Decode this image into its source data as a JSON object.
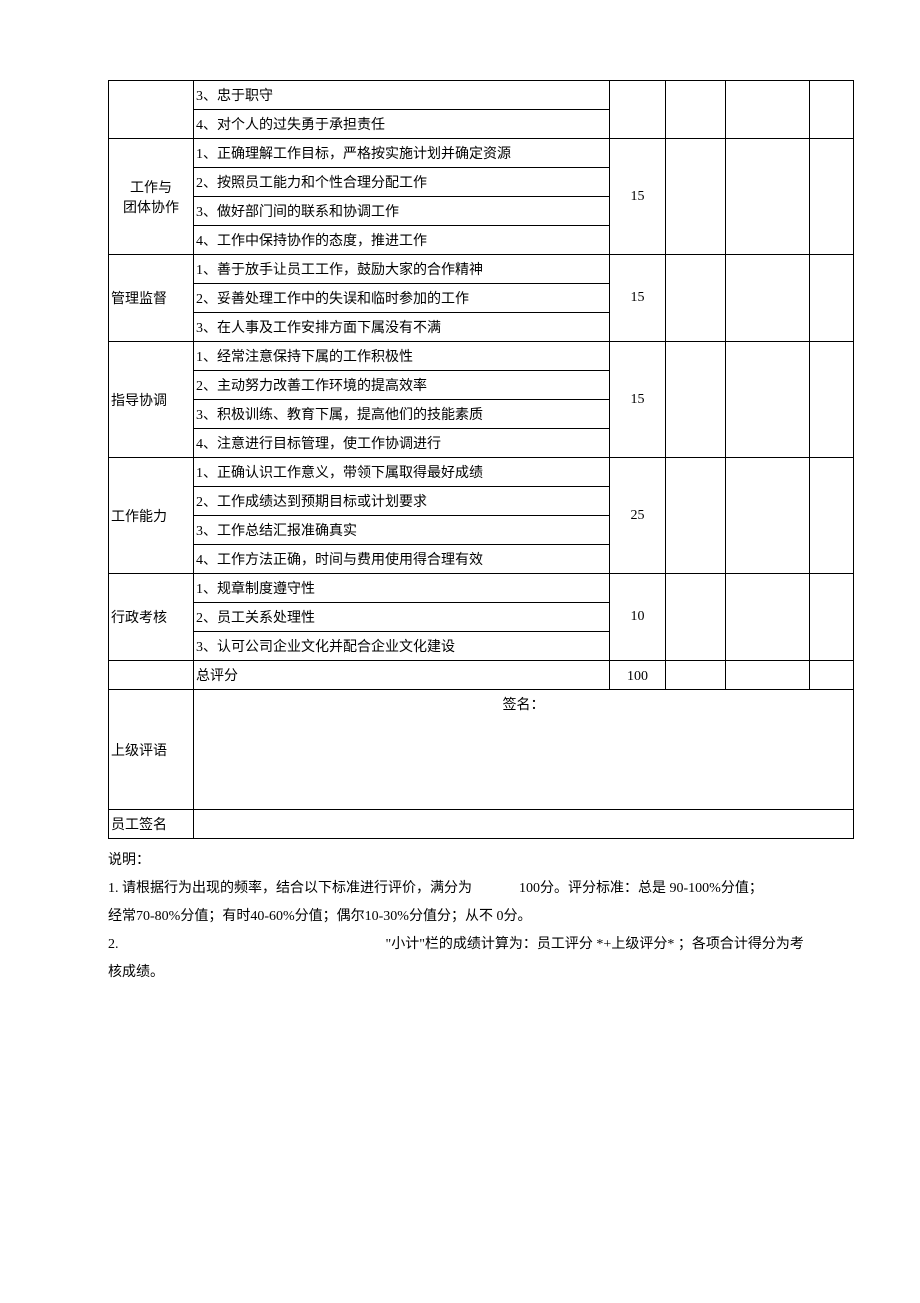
{
  "categories": [
    {
      "name": "",
      "align": "left",
      "score": "",
      "items": [
        "3、忠于职守",
        "4、对个人的过失勇于承担责任"
      ],
      "continuation": true
    },
    {
      "name": "工作与团体协作",
      "align": "center",
      "score": "15",
      "items": [
        "1、正确理解工作目标，严格按实施计划并确定资源",
        "2、按照员工能力和个性合理分配工作",
        "3、做好部门间的联系和协调工作",
        "4、工作中保持协作的态度，推进工作"
      ]
    },
    {
      "name": "管理监督",
      "align": "left",
      "score": "15",
      "items": [
        "1、善于放手让员工工作，鼓励大家的合作精神",
        "2、妥善处理工作中的失误和临时参加的工作",
        "3、在人事及工作安排方面下属没有不满"
      ]
    },
    {
      "name": "指导协调",
      "align": "left",
      "score": "15",
      "items": [
        "1、经常注意保持下属的工作积极性",
        "2、主动努力改善工作环境的提高效率",
        "3、积极训练、教育下属，提高他们的技能素质",
        "4、注意进行目标管理，使工作协调进行"
      ]
    },
    {
      "name": "工作能力",
      "align": "left",
      "score": "25",
      "items": [
        "1、正确认识工作意义，带领下属取得最好成绩",
        "2、工作成绩达到预期目标或计划要求",
        "3、工作总结汇报准确真实",
        "4、工作方法正确，时间与费用使用得合理有效"
      ]
    },
    {
      "name": "行政考核",
      "align": "left",
      "score": "10",
      "items": [
        "1、规章制度遵守性",
        "2、员工关系处理性",
        "3、认可公司企业文化并配合企业文化建设"
      ]
    }
  ],
  "total": {
    "label": "总评分",
    "score": "100"
  },
  "supervisor_comment": {
    "label": "上级评语",
    "sign": "签名："
  },
  "employee_sign": {
    "label": "员工签名"
  },
  "notes": {
    "line1": "说明：",
    "line2a": "1. 请根据行为出现的频率，结合以下标准进行评价，满分为",
    "line2b": "100分。评分标准：总是 90-100%分值；",
    "line3": "经常70-80%分值；有时40-60%分值；偶尔10-30%分值分；从不 0分。",
    "line4a": "2.",
    "line4b": "\"小计\"栏的成绩计算为：员工评分 *+上级评分* ；各项合计得分为考核成绩。"
  }
}
